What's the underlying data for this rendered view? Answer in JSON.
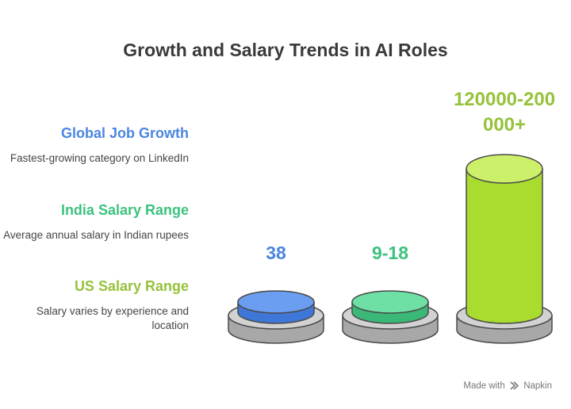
{
  "title": "Growth and Salary Trends in AI Roles",
  "items": [
    {
      "heading": "Global Job Growth",
      "description": "Fastest-growing category on LinkedIn",
      "value": "38",
      "color": "#4a86e0"
    },
    {
      "heading": "India Salary Range",
      "description": "Average annual salary in Indian rupees",
      "value": "9-18",
      "color": "#3cc27e"
    },
    {
      "heading": "US Salary Range",
      "description": "Salary varies by experience and location",
      "value": "120000-200000+",
      "color": "#96c23a"
    }
  ],
  "footer": {
    "made_with": "Made with",
    "brand": "Napkin"
  }
}
